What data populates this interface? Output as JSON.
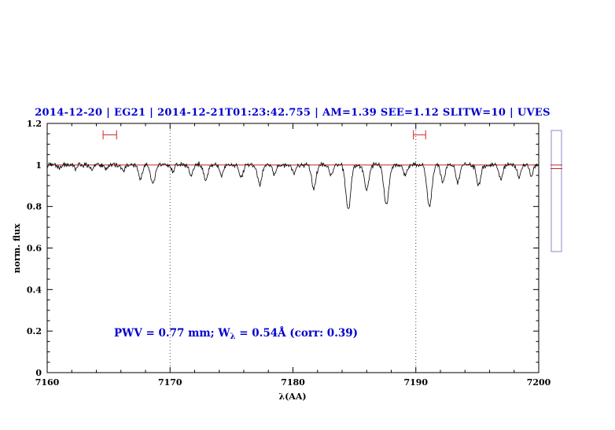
{
  "title": "2014-12-20 | EG21 | 2014-12-21T01:23:42.755 | AM=1.39 SEE=1.12 SLITW=10 | UVES",
  "title_color": "#0000cd",
  "annotation": {
    "pre": "PWV = 0.77 mm; W",
    "sub": "λ",
    "post": " = 0.54Å (corr: 0.39)",
    "color": "#0000cd"
  },
  "side_panel": {
    "outline_color": "#8888cc",
    "marker_color": "#cc2222",
    "marker_positions": [
      0.285,
      0.315
    ]
  },
  "chart_data": {
    "type": "line",
    "title": "2014-12-20 | EG21 | 2014-12-21T01:23:42.755 | AM=1.39 SEE=1.12 SLITW=10 | UVES",
    "xlabel": "λ(AA)",
    "ylabel": "norm. flux",
    "xlim": [
      7160,
      7200
    ],
    "ylim": [
      0,
      1.2
    ],
    "x_major_ticks": [
      7160,
      7170,
      7180,
      7190,
      7200
    ],
    "x_tick_labels": [
      "7160",
      "7170",
      "7180",
      "7190",
      "7200"
    ],
    "x_minor_step": 2,
    "y_major_ticks": [
      0,
      0.2,
      0.4,
      0.6,
      0.8,
      1,
      1.2
    ],
    "y_tick_labels": [
      "0",
      "0.2",
      "0.4",
      "0.6",
      "0.8",
      "1",
      "1.2"
    ],
    "y_minor_step": 0.05,
    "grid": false,
    "dotted_vlines": [
      7170,
      7190
    ],
    "continuum": {
      "level": 1.0,
      "color": "#cc2222"
    },
    "spectrum": {
      "color": "#000000",
      "sample_step": 0.05,
      "noise_sigma": 0.006,
      "continuum_level": 1.0,
      "absorption_lines": [
        {
          "center": 7161.0,
          "depth": 0.015,
          "sigma": 0.12
        },
        {
          "center": 7162.3,
          "depth": 0.02,
          "sigma": 0.12
        },
        {
          "center": 7163.6,
          "depth": 0.025,
          "sigma": 0.14
        },
        {
          "center": 7164.8,
          "depth": 0.02,
          "sigma": 0.12
        },
        {
          "center": 7166.2,
          "depth": 0.03,
          "sigma": 0.15
        },
        {
          "center": 7167.6,
          "depth": 0.065,
          "sigma": 0.16
        },
        {
          "center": 7168.6,
          "depth": 0.09,
          "sigma": 0.18
        },
        {
          "center": 7170.2,
          "depth": 0.03,
          "sigma": 0.13
        },
        {
          "center": 7171.7,
          "depth": 0.05,
          "sigma": 0.15
        },
        {
          "center": 7172.9,
          "depth": 0.07,
          "sigma": 0.17
        },
        {
          "center": 7174.2,
          "depth": 0.05,
          "sigma": 0.15
        },
        {
          "center": 7175.8,
          "depth": 0.06,
          "sigma": 0.16
        },
        {
          "center": 7177.3,
          "depth": 0.095,
          "sigma": 0.18
        },
        {
          "center": 7178.5,
          "depth": 0.05,
          "sigma": 0.14
        },
        {
          "center": 7180.1,
          "depth": 0.04,
          "sigma": 0.14
        },
        {
          "center": 7181.7,
          "depth": 0.115,
          "sigma": 0.18
        },
        {
          "center": 7183.1,
          "depth": 0.05,
          "sigma": 0.14
        },
        {
          "center": 7184.5,
          "depth": 0.215,
          "sigma": 0.2
        },
        {
          "center": 7186.0,
          "depth": 0.12,
          "sigma": 0.18
        },
        {
          "center": 7187.6,
          "depth": 0.195,
          "sigma": 0.2
        },
        {
          "center": 7189.1,
          "depth": 0.05,
          "sigma": 0.14
        },
        {
          "center": 7191.1,
          "depth": 0.2,
          "sigma": 0.2
        },
        {
          "center": 7192.2,
          "depth": 0.08,
          "sigma": 0.16
        },
        {
          "center": 7193.4,
          "depth": 0.085,
          "sigma": 0.16
        },
        {
          "center": 7195.1,
          "depth": 0.1,
          "sigma": 0.17
        },
        {
          "center": 7196.9,
          "depth": 0.07,
          "sigma": 0.16
        },
        {
          "center": 7198.4,
          "depth": 0.06,
          "sigma": 0.15
        },
        {
          "center": 7199.4,
          "depth": 0.05,
          "sigma": 0.14
        }
      ]
    },
    "telluric_markers": [
      {
        "center": 7165.1,
        "half_width": 0.55,
        "level": 1.145,
        "cap": 0.022,
        "color": "#dd4444"
      },
      {
        "center": 7190.3,
        "half_width": 0.5,
        "level": 1.145,
        "cap": 0.022,
        "color": "#dd4444"
      }
    ]
  }
}
